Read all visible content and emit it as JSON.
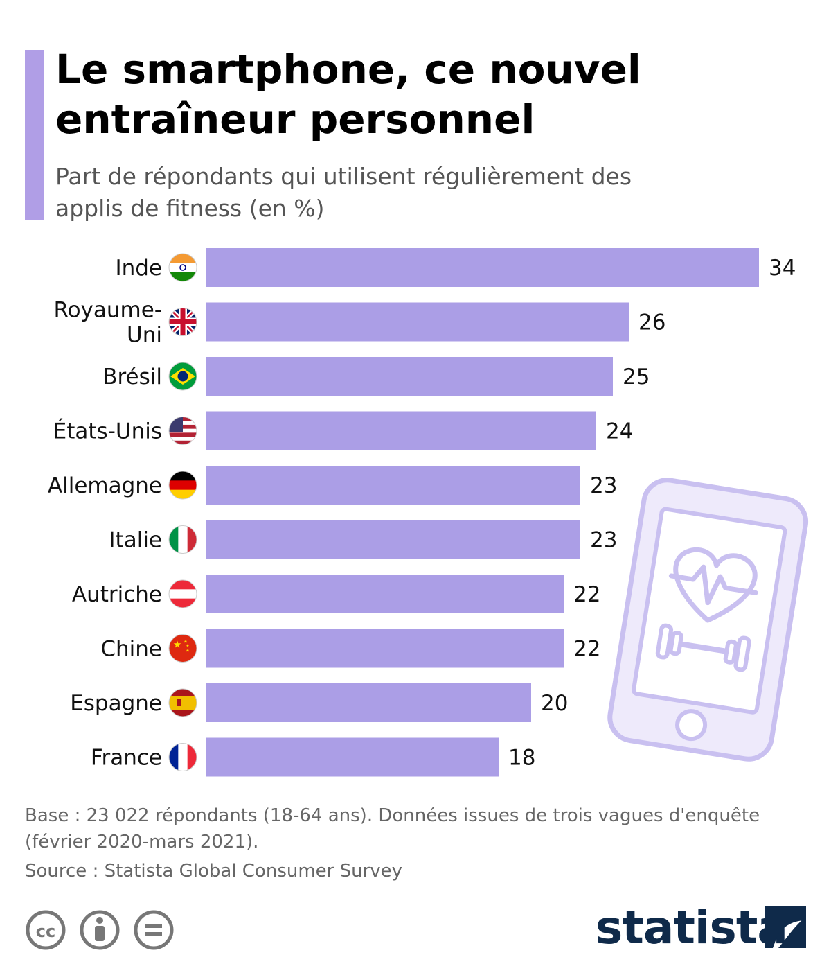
{
  "header": {
    "title": "Le smartphone, ce nouvel entraîneur personnel",
    "subtitle": "Part de répondants qui utilisent régulièrement des applis de fitness (en %)"
  },
  "colors": {
    "accent": "#b09ee6",
    "bar": "#ab9ee6",
    "brand": "#0f2a4a",
    "illustration": "#c9c0f0"
  },
  "chart_data": {
    "type": "bar",
    "orientation": "horizontal",
    "categories": [
      "Inde",
      "Royaume-Uni",
      "Brésil",
      "États-Unis",
      "Allemagne",
      "Italie",
      "Autriche",
      "Chine",
      "Espagne",
      "France"
    ],
    "category_lines": [
      [
        "Inde"
      ],
      [
        "Royaume-",
        "Uni"
      ],
      [
        "Brésil"
      ],
      [
        "États-Unis"
      ],
      [
        "Allemagne"
      ],
      [
        "Italie"
      ],
      [
        "Autriche"
      ],
      [
        "Chine"
      ],
      [
        "Espagne"
      ],
      [
        "France"
      ]
    ],
    "values": [
      34,
      26,
      25,
      24,
      23,
      23,
      22,
      22,
      20,
      18
    ],
    "value_labels": [
      "34",
      "26",
      "25",
      "24",
      "23",
      "23",
      "22",
      "22",
      "20",
      "18"
    ],
    "flag_icons": [
      "india-flag-icon",
      "uk-flag-icon",
      "brazil-flag-icon",
      "usa-flag-icon",
      "germany-flag-icon",
      "italy-flag-icon",
      "austria-flag-icon",
      "china-flag-icon",
      "spain-flag-icon",
      "france-flag-icon"
    ],
    "xlim": [
      0,
      34
    ],
    "grid": false,
    "legend": "none"
  },
  "notes": {
    "base": "Base : 23 022 répondants (18-64 ans). Données issues de trois vagues d'enquête (février 2020-mars 2021).",
    "source": "Source : Statista Global Consumer Survey"
  },
  "footer": {
    "brand": "statista",
    "license_icons": [
      "cc-icon",
      "attribution-icon",
      "no-derivatives-icon"
    ]
  },
  "illustration": {
    "icon": "smartphone-fitness-icon"
  }
}
